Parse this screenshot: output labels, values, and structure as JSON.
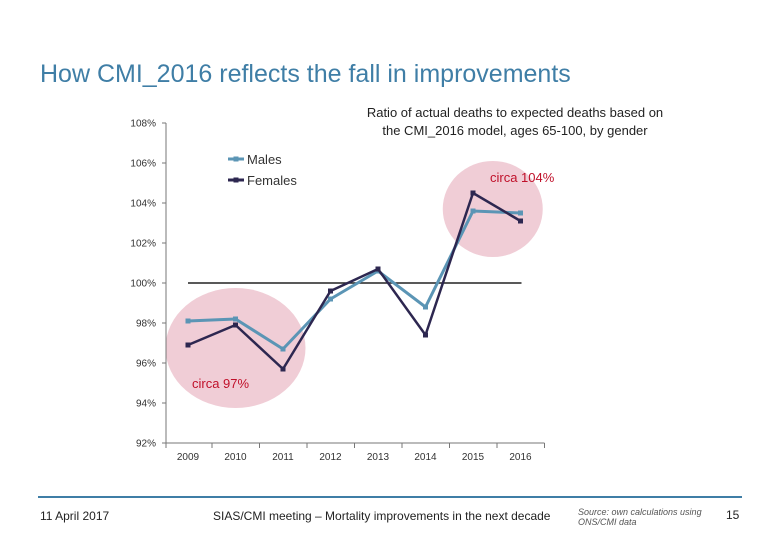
{
  "slide": {
    "title": "How CMI_2016 reflects the fall in improvements"
  },
  "footer": {
    "date": "11 April 2017",
    "meeting": "SIAS/CMI meeting – Mortality improvements in the next decade",
    "source": "Source: own calculations using ONS/CMI data",
    "page": "15"
  },
  "colors": {
    "males": "#5b95b5",
    "females": "#2d2750",
    "highlight": "#f0cdd6",
    "annotation": "#c0102a",
    "reference": "#222222",
    "title": "#3f7ea6"
  },
  "chart_data": {
    "type": "line",
    "title": "Ratio of actual deaths to expected deaths based on\nthe CMI_2016 model, ages 65-100, by gender",
    "x": [
      "2009",
      "2010",
      "2011",
      "2012",
      "2013",
      "2014",
      "2015",
      "2016"
    ],
    "series": [
      {
        "name": "Males",
        "values": [
          98.1,
          98.2,
          96.7,
          99.2,
          100.6,
          98.8,
          103.6,
          103.5
        ]
      },
      {
        "name": "Females",
        "values": [
          96.9,
          97.9,
          95.7,
          99.6,
          100.7,
          97.4,
          104.5,
          103.1
        ]
      }
    ],
    "reference_line": {
      "value": 100,
      "from": "2009",
      "to": "2016"
    },
    "yticks": [
      92,
      94,
      96,
      98,
      100,
      102,
      104,
      106,
      108
    ],
    "ytick_labels": [
      "92%",
      "94%",
      "96%",
      "98%",
      "100%",
      "102%",
      "104%",
      "106%",
      "108%"
    ],
    "ylim": [
      92,
      108
    ],
    "legend_position": "top-center",
    "annotations": [
      {
        "text": "circa 104%",
        "near": "2015-2016"
      },
      {
        "text": "circa 97%",
        "near": "2009-2011"
      }
    ],
    "highlight_regions": [
      "2009-2011",
      "2015-2016"
    ]
  }
}
